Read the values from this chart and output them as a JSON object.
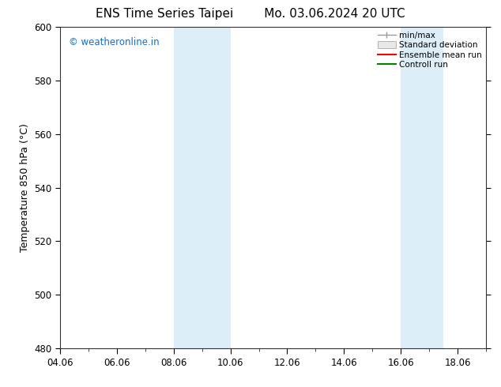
{
  "title": "ENS Time Series Taipei",
  "title2": "Mo. 03.06.2024 20 UTC",
  "ylabel": "Temperature 850 hPa (°C)",
  "ylim": [
    480,
    600
  ],
  "yticks": [
    480,
    500,
    520,
    540,
    560,
    580,
    600
  ],
  "xlim_min": 0,
  "xlim_max": 15,
  "xtick_labels": [
    "04.06",
    "06.06",
    "08.06",
    "10.06",
    "12.06",
    "14.06",
    "16.06",
    "18.06"
  ],
  "xtick_positions": [
    0,
    2,
    4,
    6,
    8,
    10,
    12,
    14
  ],
  "shaded_bands": [
    {
      "xmin": 4,
      "xmax": 6
    },
    {
      "xmin": 12,
      "xmax": 13.5
    }
  ],
  "band_color": "#ddeef8",
  "background_color": "#ffffff",
  "watermark": "© weatheronline.in",
  "watermark_color": "#1a6bc0",
  "legend_entries": [
    "min/max",
    "Standard deviation",
    "Ensemble mean run",
    "Controll run"
  ],
  "legend_colors": [
    "#999999",
    "#cccccc",
    "#ff0000",
    "#008000"
  ],
  "title_fontsize": 11,
  "tick_fontsize": 8.5,
  "label_fontsize": 9
}
